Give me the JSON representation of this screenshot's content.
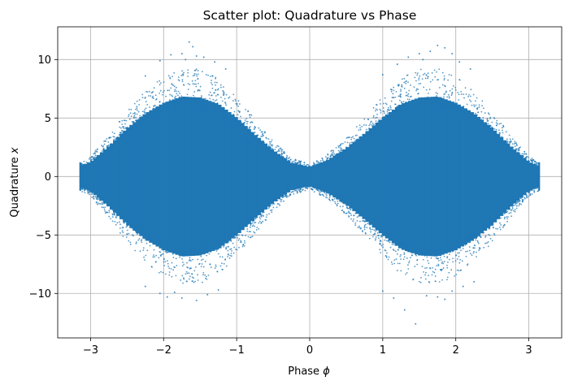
{
  "chart_data": {
    "type": "scatter",
    "title": "Scatter plot: Quadrature vs Phase",
    "xlabel": "Phase ϕ",
    "ylabel": "Quadrature x",
    "xlim": [
      -3.45,
      3.45
    ],
    "ylim": [
      -13.8,
      12.8
    ],
    "xticks": [
      -3,
      -2,
      -1,
      0,
      1,
      2,
      3
    ],
    "xtick_labels": [
      "−3",
      "−2",
      "−1",
      "0",
      "1",
      "2",
      "3"
    ],
    "yticks": [
      -10,
      -5,
      0,
      5,
      10
    ],
    "ytick_labels": [
      "−10",
      "−5",
      "0",
      "5",
      "10"
    ],
    "grid": true,
    "marker_color": "#1f77b4",
    "series": [
      {
        "description_x_range": [
          -3.1416,
          3.1416
        ],
        "envelope_amplitude_x": [
          [
            -3.14,
            1.0
          ],
          [
            -3.0,
            1.4
          ],
          [
            -2.75,
            2.9
          ],
          [
            -2.5,
            4.6
          ],
          [
            -2.25,
            6.0
          ],
          [
            -2.0,
            7.0
          ],
          [
            -1.75,
            7.6
          ],
          [
            -1.5,
            7.5
          ],
          [
            -1.25,
            6.9
          ],
          [
            -1.0,
            5.6
          ],
          [
            -0.75,
            4.0
          ],
          [
            -0.5,
            2.5
          ],
          [
            -0.25,
            1.3
          ],
          [
            0.0,
            0.9
          ],
          [
            0.25,
            1.6
          ],
          [
            0.5,
            2.7
          ],
          [
            0.75,
            4.1
          ],
          [
            1.0,
            5.6
          ],
          [
            1.25,
            6.9
          ],
          [
            1.5,
            7.5
          ],
          [
            1.75,
            7.6
          ],
          [
            2.0,
            7.0
          ],
          [
            2.25,
            6.0
          ],
          [
            2.5,
            4.6
          ],
          [
            2.75,
            2.9
          ],
          [
            3.0,
            1.4
          ],
          [
            3.14,
            1.0
          ]
        ],
        "outlier_points": [
          [
            -1.65,
            11.5
          ],
          [
            -1.6,
            11.1
          ],
          [
            -1.9,
            10.4
          ],
          [
            -1.75,
            10.5
          ],
          [
            -1.55,
            10.3
          ],
          [
            -1.45,
            10.2
          ],
          [
            -1.3,
            9.8
          ],
          [
            -2.05,
            9.9
          ],
          [
            -1.15,
            9.2
          ],
          [
            -2.25,
            8.6
          ],
          [
            -1.7,
            10.0
          ],
          [
            1.5,
            10.5
          ],
          [
            1.65,
            10.7
          ],
          [
            1.75,
            11.2
          ],
          [
            1.85,
            11.0
          ],
          [
            1.35,
            10.2
          ],
          [
            1.95,
            10.5
          ],
          [
            1.2,
            9.6
          ],
          [
            2.05,
            9.8
          ],
          [
            2.2,
            9.2
          ],
          [
            1.0,
            8.7
          ],
          [
            1.55,
            10.0
          ],
          [
            -1.95,
            -10.3
          ],
          [
            -2.05,
            -10.0
          ],
          [
            -1.75,
            -10.4
          ],
          [
            -1.55,
            -10.6
          ],
          [
            -1.4,
            -10.1
          ],
          [
            -1.25,
            -9.7
          ],
          [
            -2.25,
            -9.4
          ],
          [
            -1.85,
            -9.9
          ],
          [
            1.45,
            -12.6
          ],
          [
            1.3,
            -11.4
          ],
          [
            1.15,
            -10.4
          ],
          [
            1.6,
            -10.2
          ],
          [
            1.75,
            -10.3
          ],
          [
            1.95,
            -9.8
          ],
          [
            2.1,
            -9.4
          ],
          [
            1.85,
            -10.5
          ],
          [
            1.0,
            -9.8
          ],
          [
            2.25,
            -9.0
          ]
        ]
      }
    ]
  }
}
